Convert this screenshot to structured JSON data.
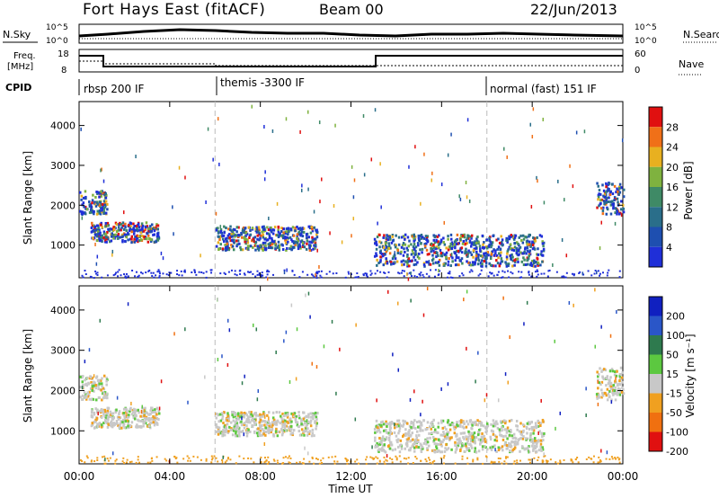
{
  "header": {
    "station": "Fort Hays East (fitACF)",
    "beam": "Beam 00",
    "date": "22/Jun/2013"
  },
  "top_panels": {
    "nsky_label": "N.Sky",
    "nsearch_label": "N.Search",
    "noise_ticks": [
      "10^5",
      "10^0"
    ],
    "freq_label": "Freq.",
    "freq_unit": "[MHz]",
    "freq_ticks": [
      "18",
      "8"
    ],
    "nave_label": "Nave",
    "nave_ticks": [
      "60",
      "0"
    ],
    "cpid_label": "CPID"
  },
  "chart_data": [
    {
      "type": "heatmap",
      "name": "power",
      "ylabel": "Slant Range [km]",
      "y_ticks": [
        1000,
        2000,
        3000,
        4000
      ],
      "ylim": [
        180,
        4600
      ],
      "colorbar_label": "Power [dB]",
      "colorbar_ticks": [
        4,
        8,
        12,
        16,
        20,
        24,
        28
      ],
      "colorbar_colors": [
        "#1f2fd8",
        "#1e4fb0",
        "#2a6e8a",
        "#3f8a66",
        "#7fb23f",
        "#e8b020",
        "#f07018",
        "#e01010"
      ],
      "scatter_bands": [
        {
          "t0": 0.0,
          "t1": 1.2,
          "r0": 1800,
          "r1": 2400
        },
        {
          "t0": 0.5,
          "t1": 3.5,
          "r0": 1100,
          "r1": 1600
        },
        {
          "t0": 6.0,
          "t1": 10.5,
          "r0": 900,
          "r1": 1500
        },
        {
          "t0": 13.0,
          "t1": 20.5,
          "r0": 500,
          "r1": 1300
        },
        {
          "t0": 22.8,
          "t1": 24.0,
          "r0": 1800,
          "r1": 2600
        }
      ]
    },
    {
      "type": "heatmap",
      "name": "velocity",
      "ylabel": "Slant Range [km]",
      "y_ticks": [
        1000,
        2000,
        3000,
        4000
      ],
      "ylim": [
        180,
        4600
      ],
      "colorbar_label": "Velocity [m s⁻¹]",
      "colorbar_ticks": [
        200,
        100,
        50,
        15,
        -15,
        -50,
        -100,
        -200
      ],
      "colorbar_colors": [
        "#1020c0",
        "#2a56c8",
        "#2e7a4e",
        "#5cc840",
        "#c8c8c8",
        "#f0a020",
        "#f07010",
        "#e01010"
      ],
      "x_ticks": [
        "00:00",
        "04:00",
        "08:00",
        "12:00",
        "16:00",
        "20:00",
        "00:00"
      ],
      "xlabel": "Time UT"
    }
  ],
  "cpid_segments": [
    {
      "label": "rbsp 200 IF"
    },
    {
      "label": "themis -3300 IF"
    },
    {
      "label": "normal (fast) 151 IF"
    }
  ]
}
